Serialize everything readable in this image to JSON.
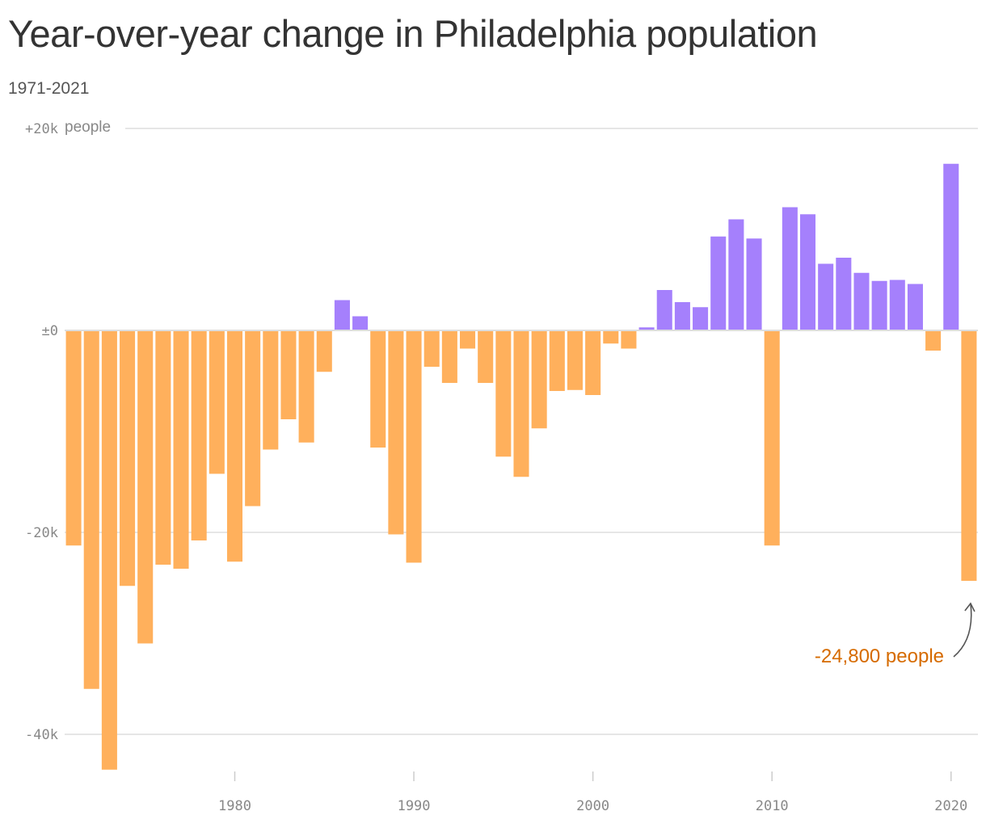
{
  "chart_data": {
    "type": "bar",
    "title": "Year-over-year change in Philadelphia population",
    "subtitle": "1971-2021",
    "xlabel": "",
    "ylabel": "",
    "y_unit_label": "people",
    "ylim": [
      -45000,
      20000
    ],
    "xlim": [
      1970.5,
      2021.5
    ],
    "y_ticks": [
      {
        "value": 20000,
        "label": "+20k"
      },
      {
        "value": 0,
        "label": "±0"
      },
      {
        "value": -20000,
        "label": "-20k"
      },
      {
        "value": -40000,
        "label": "-40k"
      }
    ],
    "x_ticks": [
      {
        "value": 1980,
        "label": "1980"
      },
      {
        "value": 1990,
        "label": "1990"
      },
      {
        "value": 2000,
        "label": "2000"
      },
      {
        "value": 2010,
        "label": "2010"
      },
      {
        "value": 2020,
        "label": "2020"
      }
    ],
    "grid": true,
    "legend": "none",
    "colors": {
      "positive": "#a580fc",
      "negative": "#ffb05c",
      "annotation": "#d66b00",
      "grid": "#dddddd",
      "arrow": "#555555"
    },
    "x": [
      1971,
      1972,
      1973,
      1974,
      1975,
      1976,
      1977,
      1978,
      1979,
      1980,
      1981,
      1982,
      1983,
      1984,
      1985,
      1986,
      1987,
      1988,
      1989,
      1990,
      1991,
      1992,
      1993,
      1994,
      1995,
      1996,
      1997,
      1998,
      1999,
      2000,
      2001,
      2002,
      2003,
      2004,
      2005,
      2006,
      2007,
      2008,
      2009,
      2010,
      2011,
      2012,
      2013,
      2014,
      2015,
      2016,
      2017,
      2018,
      2019,
      2020,
      2021
    ],
    "values": [
      -21300,
      -35500,
      -43500,
      -25300,
      -31000,
      -23200,
      -23600,
      -20800,
      -14200,
      -22900,
      -17400,
      -11800,
      -8800,
      -11100,
      -4100,
      3000,
      1400,
      -11600,
      -20200,
      -23000,
      -3600,
      -5200,
      -1800,
      -5200,
      -12500,
      -14500,
      -9700,
      -6000,
      -5900,
      -6400,
      -1300,
      -1800,
      300,
      4000,
      2800,
      2300,
      9300,
      11000,
      9100,
      -21300,
      12200,
      11500,
      6600,
      7200,
      5700,
      4900,
      5000,
      4600,
      -2000,
      16500,
      -24800
    ],
    "annotations": [
      {
        "text": "-24,800 people",
        "x": 2021,
        "y": -24800
      }
    ]
  }
}
